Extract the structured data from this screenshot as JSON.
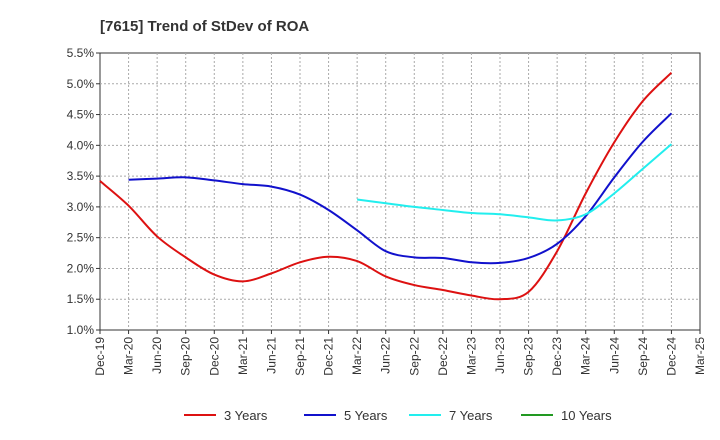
{
  "chart_data": {
    "type": "line",
    "title": "[7615]  Trend of StDev of ROA",
    "xlabel": "",
    "ylabel": "",
    "x": [
      "Dec-19",
      "Mar-20",
      "Jun-20",
      "Sep-20",
      "Dec-20",
      "Mar-21",
      "Jun-21",
      "Sep-21",
      "Dec-21",
      "Mar-22",
      "Jun-22",
      "Sep-22",
      "Dec-22",
      "Mar-23",
      "Jun-23",
      "Sep-23",
      "Dec-23",
      "Mar-24",
      "Jun-24",
      "Sep-24",
      "Dec-24",
      "Mar-25"
    ],
    "ylim": [
      1.0,
      5.5
    ],
    "yticks": [
      "1.0%",
      "1.5%",
      "2.0%",
      "2.5%",
      "3.0%",
      "3.5%",
      "4.0%",
      "4.5%",
      "5.0%",
      "5.5%"
    ],
    "grid": true,
    "legend_position": "bottom",
    "series": [
      {
        "name": "3 Years",
        "color": "#dd1111",
        "values": [
          3.42,
          3.02,
          2.52,
          2.18,
          1.9,
          1.79,
          1.92,
          2.1,
          2.19,
          2.12,
          1.87,
          1.73,
          1.65,
          1.56,
          1.5,
          1.62,
          2.28,
          3.22,
          4.05,
          4.72,
          5.18,
          null
        ]
      },
      {
        "name": "5 Years",
        "color": "#1111cc",
        "values": [
          null,
          3.44,
          3.46,
          3.48,
          3.43,
          3.37,
          3.33,
          3.2,
          2.95,
          2.62,
          2.28,
          2.18,
          2.17,
          2.1,
          2.09,
          2.17,
          2.4,
          2.85,
          3.48,
          4.06,
          4.52,
          null
        ]
      },
      {
        "name": "7 Years",
        "color": "#22eeee",
        "values": [
          null,
          null,
          null,
          null,
          null,
          null,
          null,
          null,
          null,
          3.12,
          3.06,
          3.0,
          2.95,
          2.9,
          2.88,
          2.83,
          2.78,
          2.88,
          3.22,
          3.62,
          4.02,
          null
        ]
      },
      {
        "name": "10 Years",
        "color": "#229922",
        "values": [
          null,
          null,
          null,
          null,
          null,
          null,
          null,
          null,
          null,
          null,
          null,
          null,
          null,
          null,
          null,
          null,
          null,
          null,
          null,
          null,
          null,
          null
        ]
      }
    ]
  }
}
